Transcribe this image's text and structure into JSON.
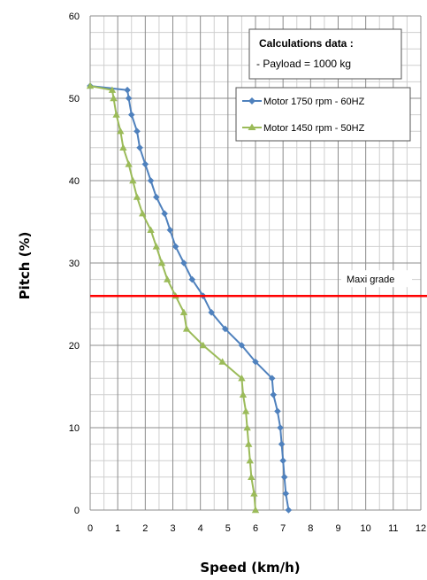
{
  "chart_data": {
    "type": "line",
    "xlabel": "Speed (km/h)",
    "ylabel": "Pitch (%)",
    "xlim": [
      0,
      12
    ],
    "ylim": [
      0,
      60
    ],
    "x_ticks": [
      "0",
      "1",
      "2",
      "3",
      "4",
      "5",
      "6",
      "7",
      "8",
      "9",
      "10",
      "11",
      "12"
    ],
    "y_ticks": [
      "0",
      "10",
      "20",
      "30",
      "40",
      "50",
      "60"
    ],
    "grid": true,
    "legend_position": "right",
    "series": [
      {
        "name": "Motor 1750 rpm - 60HZ",
        "color": "#4f81bd",
        "marker": "diamond",
        "points": [
          [
            7.2,
            0
          ],
          [
            7.1,
            2
          ],
          [
            7.05,
            4
          ],
          [
            7.0,
            6
          ],
          [
            6.95,
            8
          ],
          [
            6.9,
            10
          ],
          [
            6.8,
            12
          ],
          [
            6.65,
            14
          ],
          [
            6.6,
            16
          ],
          [
            6.0,
            18
          ],
          [
            5.5,
            20
          ],
          [
            4.9,
            22
          ],
          [
            4.4,
            24
          ],
          [
            4.1,
            26
          ],
          [
            3.7,
            28
          ],
          [
            3.4,
            30
          ],
          [
            3.1,
            32
          ],
          [
            2.9,
            34
          ],
          [
            2.7,
            36
          ],
          [
            2.4,
            38
          ],
          [
            2.2,
            40
          ],
          [
            2.0,
            42
          ],
          [
            1.8,
            44
          ],
          [
            1.7,
            46
          ],
          [
            1.5,
            48
          ],
          [
            1.4,
            50
          ],
          [
            1.35,
            51
          ],
          [
            0.0,
            51.5
          ]
        ]
      },
      {
        "name": "Motor 1450 rpm - 50HZ",
        "color": "#9bbb59",
        "marker": "triangle",
        "points": [
          [
            6.0,
            0
          ],
          [
            5.95,
            2
          ],
          [
            5.85,
            4
          ],
          [
            5.8,
            6
          ],
          [
            5.75,
            8
          ],
          [
            5.7,
            10
          ],
          [
            5.65,
            12
          ],
          [
            5.55,
            14
          ],
          [
            5.5,
            16
          ],
          [
            4.8,
            18
          ],
          [
            4.1,
            20
          ],
          [
            3.5,
            22
          ],
          [
            3.4,
            24
          ],
          [
            3.1,
            26
          ],
          [
            2.8,
            28
          ],
          [
            2.6,
            30
          ],
          [
            2.4,
            32
          ],
          [
            2.2,
            34
          ],
          [
            1.9,
            36
          ],
          [
            1.7,
            38
          ],
          [
            1.55,
            40
          ],
          [
            1.4,
            42
          ],
          [
            1.2,
            44
          ],
          [
            1.1,
            46
          ],
          [
            0.95,
            48
          ],
          [
            0.85,
            50
          ],
          [
            0.8,
            51
          ],
          [
            0.0,
            51.5
          ]
        ]
      }
    ],
    "reference_line": {
      "label": "Maxi grade",
      "y": 26,
      "color": "#ff0000"
    },
    "annotation": {
      "title": "Calculations data :",
      "text": "- Payload = 1000 kg"
    }
  }
}
